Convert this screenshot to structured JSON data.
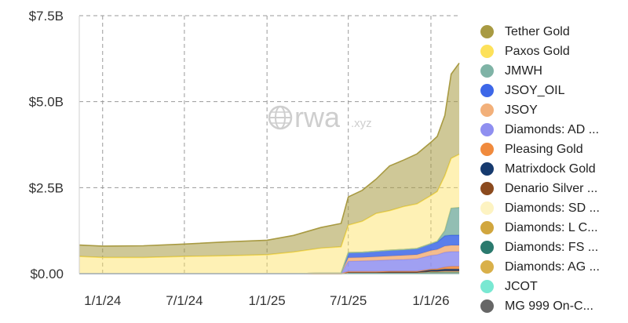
{
  "watermark": {
    "brand": "rwa",
    "suffix": ".xyz"
  },
  "chart_data": {
    "type": "area",
    "stacked": true,
    "title": "",
    "xlabel": "",
    "ylabel": "",
    "ylim": [
      0,
      7.5
    ],
    "y_unit": "B USD",
    "yticks": [
      {
        "value": 0,
        "label": "$0.00"
      },
      {
        "value": 2.5,
        "label": "$2.5B"
      },
      {
        "value": 5.0,
        "label": "$5.0B"
      },
      {
        "value": 7.5,
        "label": "$7.5B"
      }
    ],
    "xlim": [
      "2023-11-10",
      "2026-03-05"
    ],
    "xticks": [
      {
        "date": "2024-01-01",
        "label": "1/1/24"
      },
      {
        "date": "2024-07-01",
        "label": "7/1/24"
      },
      {
        "date": "2025-01-01",
        "label": "1/1/25"
      },
      {
        "date": "2025-07-01",
        "label": "7/1/25"
      },
      {
        "date": "2026-01-01",
        "label": "1/1/26"
      }
    ],
    "grid": true,
    "legend_position": "right",
    "x": [
      "2023-11-10",
      "2024-01-01",
      "2024-04-01",
      "2024-07-01",
      "2024-10-01",
      "2025-01-01",
      "2025-03-01",
      "2025-05-01",
      "2025-06-15",
      "2025-07-01",
      "2025-08-01",
      "2025-09-01",
      "2025-10-01",
      "2025-11-01",
      "2025-12-01",
      "2026-01-01",
      "2026-01-15",
      "2026-02-01",
      "2026-02-15",
      "2026-03-05"
    ],
    "series": [
      {
        "name": "Tether Gold",
        "color": "#a89a42",
        "values": [
          0.33,
          0.33,
          0.34,
          0.36,
          0.4,
          0.42,
          0.48,
          0.6,
          0.68,
          0.82,
          0.9,
          1.0,
          1.3,
          1.35,
          1.45,
          1.55,
          1.6,
          1.75,
          2.45,
          2.65
        ]
      },
      {
        "name": "Paxos Gold",
        "color": "#fde15a",
        "values": [
          0.5,
          0.47,
          0.47,
          0.5,
          0.52,
          0.55,
          0.63,
          0.73,
          0.77,
          0.8,
          0.9,
          1.1,
          1.15,
          1.25,
          1.3,
          1.4,
          1.45,
          1.6,
          1.45,
          1.55
        ]
      },
      {
        "name": "JMWH",
        "color": "#7fb3a6",
        "values": [
          0,
          0,
          0,
          0,
          0,
          0,
          0,
          0,
          0,
          0,
          0,
          0,
          0,
          0,
          0,
          0,
          0.02,
          0.15,
          0.78,
          0.8
        ]
      },
      {
        "name": "JSOY_OIL",
        "color": "#3d67e8",
        "values": [
          0,
          0,
          0,
          0,
          0,
          0,
          0,
          0,
          0,
          0.15,
          0.15,
          0.16,
          0.17,
          0.17,
          0.18,
          0.2,
          0.22,
          0.3,
          0.3,
          0.3
        ]
      },
      {
        "name": "JSOY",
        "color": "#f2b07a",
        "values": [
          0,
          0,
          0,
          0,
          0,
          0,
          0,
          0,
          0,
          0.1,
          0.1,
          0.11,
          0.11,
          0.12,
          0.12,
          0.14,
          0.15,
          0.18,
          0.18,
          0.18
        ]
      },
      {
        "name": "Diamonds: AD ...",
        "color": "#8f8ff0",
        "values": [
          0,
          0,
          0,
          0,
          0,
          0,
          0,
          0,
          0,
          0.3,
          0.31,
          0.32,
          0.33,
          0.34,
          0.36,
          0.4,
          0.41,
          0.43,
          0.43,
          0.43
        ]
      },
      {
        "name": "Pleasing Gold",
        "color": "#f08a3d",
        "values": [
          0,
          0,
          0,
          0,
          0,
          0,
          0,
          0,
          0,
          0,
          0,
          0,
          0,
          0,
          0,
          0.02,
          0.03,
          0.06,
          0.08,
          0.08
        ]
      },
      {
        "name": "Matrixdock Gold",
        "color": "#163a6e",
        "values": [
          0,
          0,
          0,
          0,
          0,
          0,
          0,
          0.01,
          0.01,
          0.02,
          0.02,
          0.02,
          0.03,
          0.03,
          0.03,
          0.04,
          0.04,
          0.05,
          0.05,
          0.05
        ]
      },
      {
        "name": "Denario Silver ...",
        "color": "#8b4a1e",
        "values": [
          0,
          0,
          0,
          0,
          0,
          0,
          0,
          0,
          0,
          0,
          0,
          0,
          0,
          0,
          0,
          0.01,
          0.01,
          0.02,
          0.02,
          0.02
        ]
      },
      {
        "name": "Diamonds: SD ...",
        "color": "#fdf3c2",
        "values": [
          0,
          0,
          0,
          0,
          0,
          0,
          0,
          0,
          0,
          0,
          0,
          0,
          0,
          0,
          0,
          0,
          0,
          0,
          0,
          0
        ]
      },
      {
        "name": "Diamonds: L C...",
        "color": "#d1a63e",
        "values": [
          0,
          0,
          0,
          0,
          0,
          0,
          0,
          0,
          0,
          0.01,
          0.01,
          0.01,
          0.01,
          0.01,
          0.01,
          0.02,
          0.02,
          0.02,
          0.02,
          0.02
        ]
      },
      {
        "name": "Diamonds: FS ...",
        "color": "#2b7a6e",
        "values": [
          0,
          0,
          0,
          0,
          0,
          0,
          0,
          0,
          0,
          0.02,
          0.02,
          0.02,
          0.02,
          0.02,
          0.02,
          0.03,
          0.03,
          0.03,
          0.03,
          0.03
        ]
      },
      {
        "name": "Diamonds: AG ...",
        "color": "#d9b04a",
        "values": [
          0,
          0,
          0,
          0,
          0,
          0,
          0,
          0,
          0,
          0.01,
          0.01,
          0.01,
          0.01,
          0.01,
          0.01,
          0.01,
          0.01,
          0.01,
          0.01,
          0.01
        ]
      },
      {
        "name": "JCOT",
        "color": "#79e8d2",
        "values": [
          0,
          0,
          0,
          0,
          0,
          0,
          0,
          0,
          0,
          0,
          0,
          0,
          0,
          0,
          0,
          0,
          0,
          0,
          0,
          0
        ]
      },
      {
        "name": "MG 999 On-C...",
        "color": "#666666",
        "values": [
          0,
          0,
          0,
          0,
          0,
          0,
          0,
          0,
          0,
          0,
          0,
          0,
          0,
          0,
          0,
          0,
          0,
          0,
          0,
          0
        ]
      }
    ]
  }
}
